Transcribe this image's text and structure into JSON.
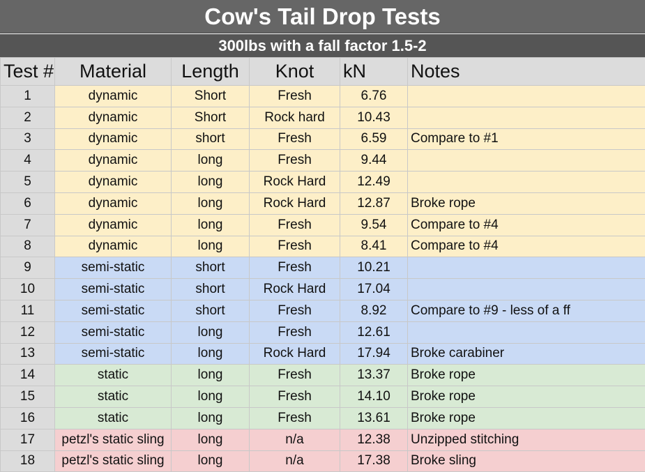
{
  "title": "Cow's Tail Drop Tests",
  "subtitle": "300lbs with a fall factor 1.5-2",
  "headers": [
    "Test #",
    "Material",
    "Length",
    "Knot",
    "kN",
    "Notes"
  ],
  "row_colors": {
    "dynamic": "#fdefc8",
    "semi-static": "#c9daf5",
    "static": "#d8ead4",
    "sling": "#f5cfd0",
    "header": "#dcdcdc"
  },
  "rows": [
    {
      "test": "1",
      "material": "dynamic",
      "length": "Short",
      "knot": "Fresh",
      "kn": "6.76",
      "notes": "",
      "group": "dyn"
    },
    {
      "test": "2",
      "material": "dynamic",
      "length": "Short",
      "knot": "Rock hard",
      "kn": "10.43",
      "notes": "",
      "group": "dyn"
    },
    {
      "test": "3",
      "material": "dynamic",
      "length": "short",
      "knot": "Fresh",
      "kn": "6.59",
      "notes": "Compare to #1",
      "group": "dyn"
    },
    {
      "test": "4",
      "material": "dynamic",
      "length": "long",
      "knot": "Fresh",
      "kn": "9.44",
      "notes": "",
      "group": "dyn"
    },
    {
      "test": "5",
      "material": "dynamic",
      "length": "long",
      "knot": "Rock Hard",
      "kn": "12.49",
      "notes": "",
      "group": "dyn"
    },
    {
      "test": "6",
      "material": "dynamic",
      "length": "long",
      "knot": "Rock Hard",
      "kn": "12.87",
      "notes": "Broke rope",
      "group": "dyn"
    },
    {
      "test": "7",
      "material": "dynamic",
      "length": "long",
      "knot": "Fresh",
      "kn": "9.54",
      "notes": "Compare to #4",
      "group": "dyn"
    },
    {
      "test": "8",
      "material": "dynamic",
      "length": "long",
      "knot": "Fresh",
      "kn": "8.41",
      "notes": "Compare to #4",
      "group": "dyn"
    },
    {
      "test": "9",
      "material": "semi-static",
      "length": "short",
      "knot": "Fresh",
      "kn": "10.21",
      "notes": "",
      "group": "semi"
    },
    {
      "test": "10",
      "material": "semi-static",
      "length": "short",
      "knot": "Rock Hard",
      "kn": "17.04",
      "notes": "",
      "group": "semi"
    },
    {
      "test": "11",
      "material": "semi-static",
      "length": "short",
      "knot": "Fresh",
      "kn": "8.92",
      "notes": "Compare to #9 - less of a ff",
      "group": "semi"
    },
    {
      "test": "12",
      "material": "semi-static",
      "length": "long",
      "knot": "Fresh",
      "kn": "12.61",
      "notes": "",
      "group": "semi"
    },
    {
      "test": "13",
      "material": "semi-static",
      "length": "long",
      "knot": "Rock Hard",
      "kn": "17.94",
      "notes": "Broke carabiner",
      "group": "semi"
    },
    {
      "test": "14",
      "material": "static",
      "length": "long",
      "knot": "Fresh",
      "kn": "13.37",
      "notes": "Broke rope",
      "group": "stat"
    },
    {
      "test": "15",
      "material": "static",
      "length": "long",
      "knot": "Fresh",
      "kn": "14.10",
      "notes": "Broke rope",
      "group": "stat"
    },
    {
      "test": "16",
      "material": "static",
      "length": "long",
      "knot": "Fresh",
      "kn": "13.61",
      "notes": "Broke rope",
      "group": "stat"
    },
    {
      "test": "17",
      "material": "petzl's static sling",
      "length": "long",
      "knot": "n/a",
      "kn": "12.38",
      "notes": "Unzipped stitching",
      "group": "sling"
    },
    {
      "test": "18",
      "material": "petzl's static sling",
      "length": "long",
      "knot": "n/a",
      "kn": "17.38",
      "notes": "Broke sling",
      "group": "sling"
    }
  ]
}
